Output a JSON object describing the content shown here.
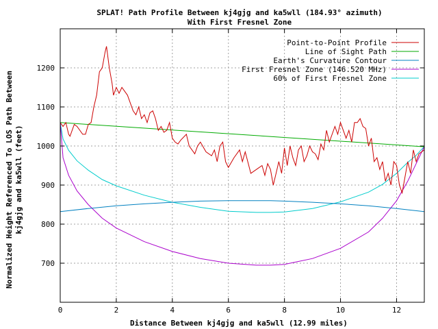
{
  "chart_data": {
    "type": "line",
    "title": "SPLAT! Path Profile Between kj4gjg and ka5wll (184.93° azimuth)",
    "subtitle": "With First Fresnel Zone",
    "xlabel": "Distance Between kj4gjg and ka5wll (12.99 miles)",
    "ylabel_lines": [
      "Normalized Height Referenced To LOS Path Between",
      "kj4gjg and ka5wll (feet)"
    ],
    "xlim": [
      0,
      12.99
    ],
    "ylim": [
      600,
      1300
    ],
    "x_ticks": [
      0,
      2,
      4,
      6,
      8,
      10,
      12
    ],
    "y_ticks": [
      700,
      800,
      900,
      1000,
      1100,
      1200
    ],
    "grid": true,
    "legend_position": "top-right",
    "series": [
      {
        "name": "Point-to-Point Profile",
        "color": "#cc0000",
        "x": [
          0,
          0.1,
          0.2,
          0.3,
          0.35,
          0.5,
          0.6,
          0.8,
          0.9,
          1.0,
          1.1,
          1.2,
          1.3,
          1.4,
          1.5,
          1.6,
          1.65,
          1.75,
          1.85,
          1.9,
          2.0,
          2.1,
          2.2,
          2.3,
          2.4,
          2.5,
          2.6,
          2.7,
          2.8,
          2.9,
          3.0,
          3.1,
          3.2,
          3.3,
          3.4,
          3.5,
          3.6,
          3.7,
          3.8,
          3.9,
          4.0,
          4.1,
          4.2,
          4.3,
          4.5,
          4.6,
          4.7,
          4.8,
          4.9,
          5.0,
          5.2,
          5.4,
          5.5,
          5.6,
          5.7,
          5.8,
          5.9,
          6.0,
          6.2,
          6.4,
          6.5,
          6.6,
          6.8,
          7.0,
          7.2,
          7.3,
          7.4,
          7.5,
          7.6,
          7.7,
          7.8,
          7.9,
          8.0,
          8.1,
          8.2,
          8.3,
          8.4,
          8.5,
          8.6,
          8.7,
          8.8,
          8.9,
          9.0,
          9.1,
          9.2,
          9.3,
          9.4,
          9.5,
          9.6,
          9.8,
          9.9,
          10.0,
          10.1,
          10.2,
          10.3,
          10.4,
          10.5,
          10.6,
          10.7,
          10.8,
          10.9,
          11.0,
          11.1,
          11.2,
          11.3,
          11.4,
          11.5,
          11.6,
          11.7,
          11.8,
          11.9,
          12.0,
          12.1,
          12.2,
          12.3,
          12.4,
          12.5,
          12.6,
          12.7,
          12.8,
          12.99
        ],
        "y": [
          1060,
          1050,
          1060,
          1030,
          1025,
          1055,
          1050,
          1030,
          1030,
          1055,
          1060,
          1100,
          1130,
          1190,
          1200,
          1240,
          1255,
          1200,
          1160,
          1130,
          1150,
          1135,
          1150,
          1140,
          1130,
          1110,
          1090,
          1080,
          1100,
          1070,
          1080,
          1060,
          1085,
          1090,
          1070,
          1040,
          1050,
          1035,
          1040,
          1060,
          1020,
          1010,
          1005,
          1015,
          1030,
          1000,
          990,
          980,
          1000,
          1010,
          985,
          975,
          990,
          960,
          1000,
          1010,
          960,
          945,
          970,
          990,
          960,
          985,
          930,
          940,
          950,
          925,
          955,
          940,
          900,
          930,
          960,
          930,
          995,
          950,
          1000,
          970,
          950,
          990,
          1000,
          960,
          975,
          1000,
          985,
          980,
          965,
          1005,
          990,
          1040,
          1010,
          1050,
          1030,
          1060,
          1040,
          1020,
          1040,
          1010,
          1060,
          1060,
          1070,
          1050,
          1045,
          1000,
          1020,
          960,
          970,
          940,
          960,
          910,
          930,
          900,
          960,
          950,
          900,
          880,
          920,
          960,
          930,
          990,
          960,
          980,
          990
        ]
      },
      {
        "name": "Line of Sight Path",
        "color": "#00aa00",
        "x": [
          0,
          12.99
        ],
        "y": [
          1060,
          998
        ]
      },
      {
        "name": "Earth's Curvature Contour",
        "color": "#0080c0",
        "x": [
          0,
          1,
          2,
          3,
          4,
          5,
          6,
          7,
          7.5,
          8,
          9,
          10,
          11,
          12,
          12.99
        ],
        "y": [
          832,
          840,
          847,
          852,
          856,
          859,
          860,
          860,
          860,
          859,
          856,
          852,
          847,
          840,
          832
        ]
      },
      {
        "name": "First Fresnel Zone (146.520 MHz)",
        "color": "#aa00cc",
        "x": [
          0,
          0.1,
          0.3,
          0.6,
          1,
          1.5,
          2,
          3,
          4,
          5,
          6,
          7,
          7.5,
          8,
          9,
          10,
          11,
          11.5,
          12,
          12.4,
          12.7,
          12.9,
          12.99
        ],
        "y": [
          1060,
          970,
          925,
          885,
          850,
          815,
          790,
          755,
          730,
          712,
          700,
          695,
          695,
          697,
          712,
          738,
          780,
          815,
          860,
          910,
          955,
          985,
          998
        ]
      },
      {
        "name": "60% of First Fresnel Zone",
        "color": "#00cccc",
        "x": [
          0,
          0.1,
          0.3,
          0.6,
          1,
          1.5,
          2,
          3,
          4,
          5,
          6,
          7,
          7.5,
          8,
          9,
          10,
          11,
          11.5,
          12,
          12.4,
          12.7,
          12.9,
          12.99
        ],
        "y": [
          1060,
          1018,
          989,
          962,
          938,
          914,
          898,
          874,
          856,
          843,
          833,
          830,
          830,
          831,
          840,
          857,
          882,
          902,
          930,
          958,
          976,
          992,
          998
        ]
      }
    ]
  }
}
